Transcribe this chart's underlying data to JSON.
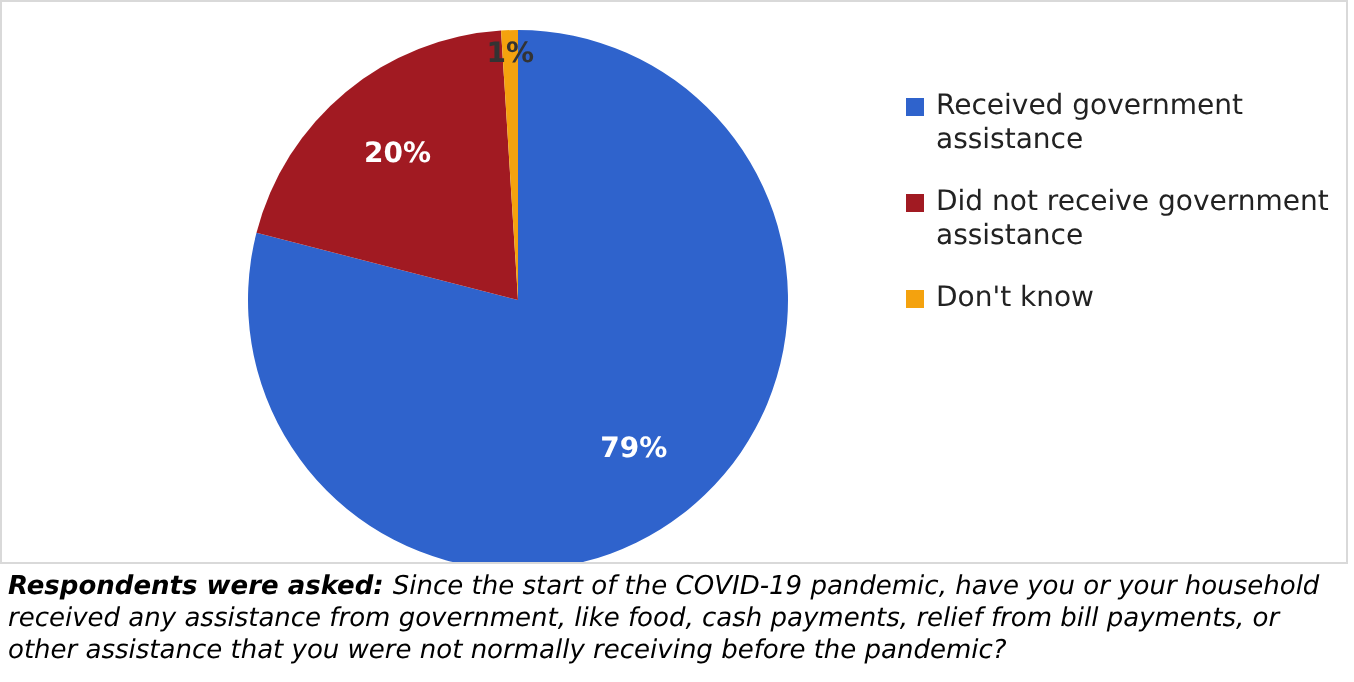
{
  "chart_data": {
    "type": "pie",
    "categories": [
      "Received government assistance",
      "Did not receive government assistance",
      "Don't know"
    ],
    "values": [
      79,
      20,
      1
    ],
    "colors": [
      "#2f63cc",
      "#a11a22",
      "#f4a20e"
    ],
    "value_labels": [
      "79%",
      "20%",
      "1%"
    ],
    "legend": "right",
    "annotations": [
      "Respondents were asked:",
      "Since the start of the COVID-19 pandemic, have you or your household received any assistance from government, like food, cash payments, relief from bill payments, or other assistance that you were not normally receiving before the pandemic?"
    ]
  }
}
